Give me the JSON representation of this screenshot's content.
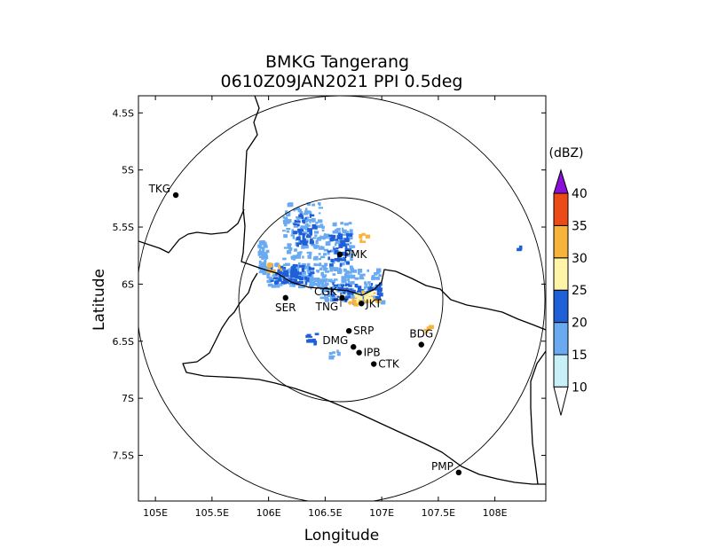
{
  "title_line1": "BMKG Tangerang",
  "title_line2": "0610Z09JAN2021 PPI 0.5deg",
  "xlabel": "Longitude",
  "ylabel": "Latitude",
  "map": {
    "lon_range": [
      104.85,
      108.45
    ],
    "lat_range": [
      -7.9,
      -4.35
    ],
    "x_ticks": [
      {
        "value": 105.0,
        "label": "105E"
      },
      {
        "value": 105.5,
        "label": "105.5E"
      },
      {
        "value": 106.0,
        "label": "106E"
      },
      {
        "value": 106.5,
        "label": "106.5E"
      },
      {
        "value": 107.0,
        "label": "107E"
      },
      {
        "value": 107.5,
        "label": "107.5E"
      },
      {
        "value": 108.0,
        "label": "108E"
      }
    ],
    "y_ticks": [
      {
        "value": -4.5,
        "label": "4.5S"
      },
      {
        "value": -5.0,
        "label": "5S"
      },
      {
        "value": -5.5,
        "label": "5.5S"
      },
      {
        "value": -6.0,
        "label": "6S"
      },
      {
        "value": -6.5,
        "label": "6.5S"
      },
      {
        "value": -7.0,
        "label": "7S"
      },
      {
        "value": -7.5,
        "label": "7.5S"
      }
    ],
    "radar_center": {
      "lon": 106.64,
      "lat": -6.12
    },
    "range_rings_km": [
      100,
      200
    ],
    "cities": [
      {
        "name": "TKG",
        "lon": 105.18,
        "lat": -5.22,
        "label_side": "left"
      },
      {
        "name": "PMK",
        "lon": 106.63,
        "lat": -5.74,
        "label_side": "right"
      },
      {
        "name": "SER",
        "lon": 106.15,
        "lat": -6.12,
        "label_side": "below"
      },
      {
        "name": "CGK",
        "lon": 106.65,
        "lat": -6.12,
        "label_side": "left"
      },
      {
        "name": "TNG",
        "lon": 106.64,
        "lat": -6.12,
        "label_side": "belowleft"
      },
      {
        "name": "JKT",
        "lon": 106.82,
        "lat": -6.17,
        "label_side": "right"
      },
      {
        "name": "SRP",
        "lon": 106.71,
        "lat": -6.41,
        "label_side": "right"
      },
      {
        "name": "DMG",
        "lon": 106.75,
        "lat": -6.55,
        "label_side": "left"
      },
      {
        "name": "IPB",
        "lon": 106.8,
        "lat": -6.6,
        "label_side": "right"
      },
      {
        "name": "CTK",
        "lon": 106.93,
        "lat": -6.7,
        "label_side": "right"
      },
      {
        "name": "BDG",
        "lon": 107.35,
        "lat": -6.53,
        "label_side": "above"
      },
      {
        "name": "PMP",
        "lon": 107.68,
        "lat": -7.65,
        "label_side": "left"
      }
    ]
  },
  "colorbar": {
    "unit": "(dBZ)",
    "levels": [
      10,
      15,
      20,
      25,
      30,
      35,
      40
    ],
    "colors": [
      "#c8f0f8",
      "#6aaaf0",
      "#1f5fd8",
      "#fff4a8",
      "#f8b43a",
      "#ec4a16"
    ],
    "over_color": "#8a10d8",
    "under_color": "#ffffff"
  },
  "echo_colors": {
    "light": "#6aaaf0",
    "medium": "#1f5fd8",
    "yellow": "#fff4a8",
    "orange": "#f8b43a",
    "red": "#ec4a16"
  }
}
